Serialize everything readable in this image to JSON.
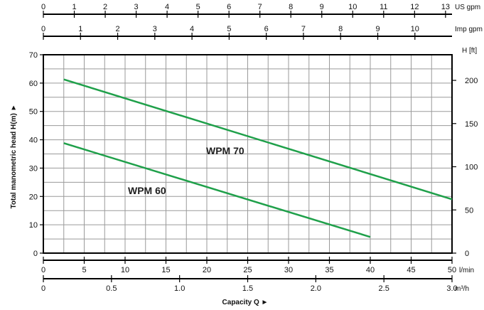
{
  "chart_data": {
    "type": "line",
    "xlabel": "Capacity Q ►",
    "ylabel": "Total manometric head H(m) ►",
    "x": {
      "unit": "l/min",
      "lim": [
        0,
        50
      ],
      "ticks": [
        0,
        5,
        10,
        15,
        20,
        25,
        30,
        35,
        40,
        45,
        50
      ],
      "grid_step": 2.5
    },
    "y": {
      "unit": "m",
      "lim": [
        0,
        70
      ],
      "ticks": [
        0,
        10,
        20,
        30,
        40,
        50,
        60,
        70
      ],
      "grid_step": 5
    },
    "x_secondary": [
      {
        "position": "top",
        "unit": "US gpm",
        "ticks": [
          "0",
          "1",
          "2",
          "3",
          "4",
          "5",
          "6",
          "7",
          "8",
          "9",
          "10",
          "11",
          "12",
          "13"
        ],
        "factor": 3.785
      },
      {
        "position": "top",
        "unit": "Imp gpm",
        "ticks": [
          "0",
          "1",
          "2",
          "3",
          "4",
          "5",
          "6",
          "7",
          "8",
          "9",
          "10"
        ],
        "factor": 4.546
      },
      {
        "position": "bottom",
        "unit": "m³/h",
        "ticks": [
          "0",
          "0.5",
          "1.0",
          "1.5",
          "2.0",
          "2.5",
          "3.0"
        ],
        "factor": 16.667
      }
    ],
    "y_secondary": {
      "position": "right",
      "unit": "H [ft]",
      "ticks": [
        "0",
        "50",
        "100",
        "150",
        "200"
      ],
      "factor": 0.3048
    },
    "grid": true,
    "series": [
      {
        "name": "WPM 70",
        "color": "#1fa04a",
        "x": [
          2.5,
          50
        ],
        "y": [
          61.3,
          19
        ]
      },
      {
        "name": "WPM 60",
        "color": "#1fa04a",
        "x": [
          2.5,
          40
        ],
        "y": [
          38.8,
          5.7
        ]
      }
    ]
  }
}
